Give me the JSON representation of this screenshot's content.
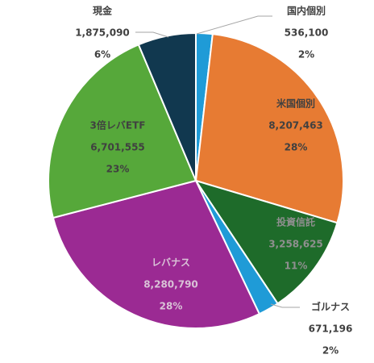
{
  "chart_data": {
    "type": "pie",
    "title": "",
    "start": "12 o'clock",
    "direction": "clockwise",
    "legend": "none",
    "slices": [
      {
        "label": "国内個別",
        "value": 536100,
        "percent_label": "2%",
        "value_label": "536,100",
        "color": "#1f9bd7",
        "label_color": "#404040"
      },
      {
        "label": "米国個別",
        "value": 8207463,
        "percent_label": "28%",
        "value_label": "8,207,463",
        "color": "#e77b33",
        "label_color": "#404040"
      },
      {
        "label": "投資信託",
        "value": 3258625,
        "percent_label": "11%",
        "value_label": "3,258,625",
        "color": "#1e6b2a",
        "label_color": "#8f8f8f"
      },
      {
        "label": "ゴルナス",
        "value": 671196,
        "percent_label": "2%",
        "value_label": "671,196",
        "color": "#1f9bd7",
        "label_color": "#404040"
      },
      {
        "label": "レバナス",
        "value": 8280790,
        "percent_label": "28%",
        "value_label": "8,280,790",
        "color": "#9b2a93",
        "label_color": "#d9c3d7"
      },
      {
        "label": "3倍レバETF",
        "value": 6701555,
        "percent_label": "23%",
        "value_label": "6,701,555",
        "color": "#56a83a",
        "label_color": "#404040"
      },
      {
        "label": "現金",
        "value": 1875090,
        "percent_label": "6%",
        "value_label": "1,875,090",
        "color": "#11384f",
        "label_color": "#404040"
      }
    ]
  }
}
